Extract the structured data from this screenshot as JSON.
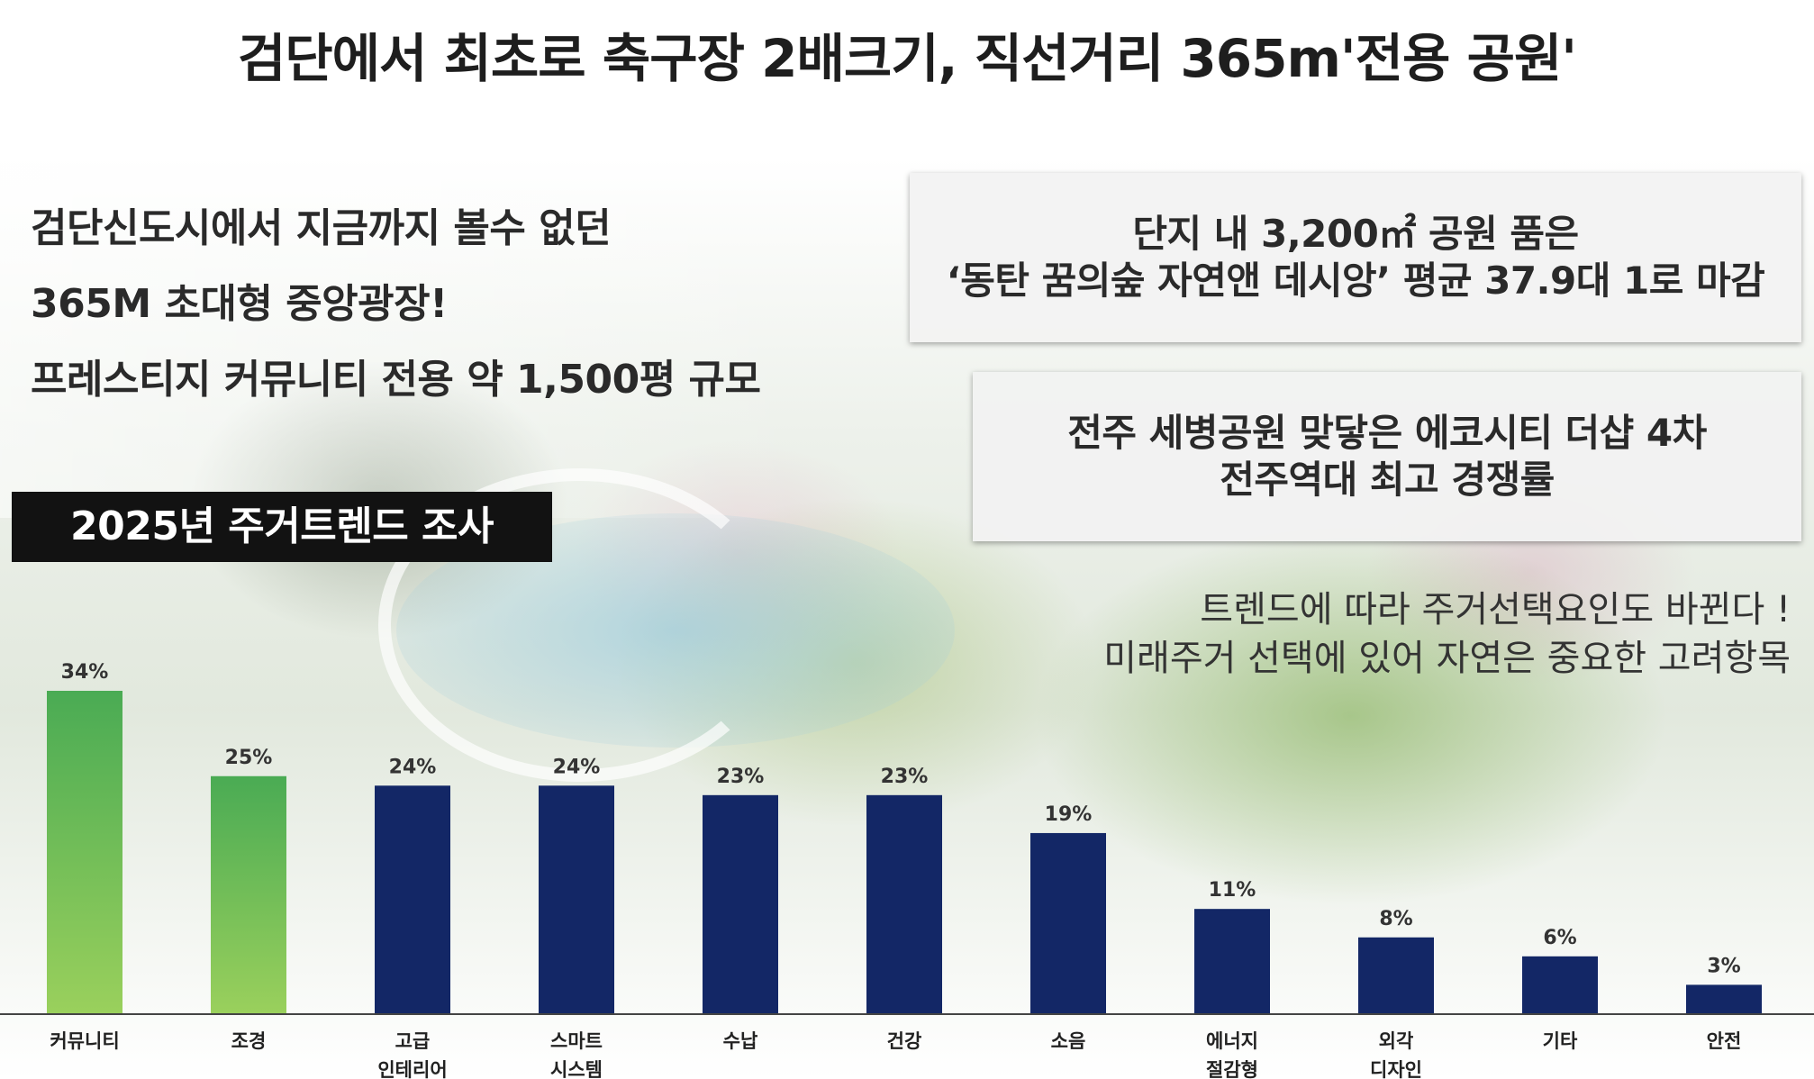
{
  "headline": "검단에서 최초로 축구장 2배크기, 직선거리 365m'전용 공원'",
  "intro_lines": [
    "검단신도시에서 지금까지 볼수 없던",
    "365M 초대형 중앙광장!",
    "프레스티지 커뮤니티 전용 약 1,500평 규모"
  ],
  "callout_1": [
    "단지 내 3,200㎡ 공원 품은",
    "‘동탄 꿈의숲 자연앤 데시앙’ 평균 37.9대 1로 마감"
  ],
  "callout_2": [
    "전주 세병공원 맞닿은 에코시티 더샵 4차",
    "전주역대 최고 경쟁률"
  ],
  "trend_text": [
    "트렌드에 따라 주거선택요인도 바뀐다 !",
    "미래주거 선택에 있어 자연은 중요한 고려항목"
  ],
  "survey_label": "2025년 주거트렌드 조사",
  "colors": {
    "highlight_top": "#4aab54",
    "highlight_bottom": "#9ad05c",
    "bar": "#132766",
    "axis": "#444444"
  },
  "chart_data": {
    "type": "bar",
    "title": "2025년 주거트렌드 조사",
    "categories": [
      [
        "커뮤니티"
      ],
      [
        "조경"
      ],
      [
        "고급",
        "인테리어"
      ],
      [
        "스마트",
        "시스템"
      ],
      [
        "수납"
      ],
      [
        "건강"
      ],
      [
        "소음"
      ],
      [
        "에너지",
        "절감형"
      ],
      [
        "외각",
        "디자인"
      ],
      [
        "기타"
      ],
      [
        "안전"
      ]
    ],
    "values": [
      34,
      25,
      24,
      24,
      23,
      23,
      19,
      11,
      8,
      6,
      3
    ],
    "value_labels": [
      "34%",
      "25%",
      "24%",
      "24%",
      "23%",
      "23%",
      "19%",
      "11%",
      "8%",
      "6%",
      "3%"
    ],
    "highlighted": [
      true,
      true,
      false,
      false,
      false,
      false,
      false,
      false,
      false,
      false,
      false
    ],
    "ylim": [
      0,
      34
    ],
    "xlabel": "",
    "ylabel": "",
    "grid": false
  }
}
